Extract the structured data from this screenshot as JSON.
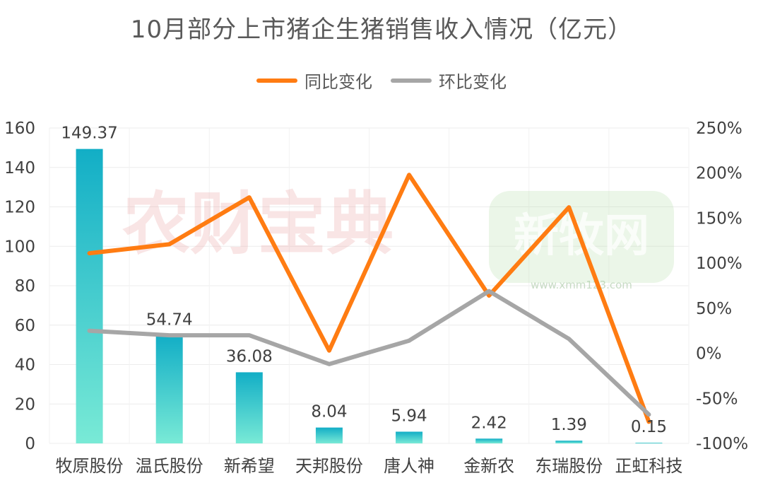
{
  "title": "10月部分上市猪企生猪销售收入情况（亿元）",
  "legend": {
    "yoy_label": "同比变化",
    "mom_label": "环比变化"
  },
  "watermarks": {
    "left": "农财宝典",
    "right": "新牧网",
    "right_sub": "www.xmm123.com"
  },
  "colors": {
    "bar_top": "#12aec6",
    "bar_bottom": "#79ead6",
    "yoy_line": "#ff7c12",
    "mom_line": "#a6a6a6",
    "text": "#404040"
  },
  "chart_data": {
    "type": "bar",
    "title": "10月部分上市猪企生猪销售收入情况（亿元）",
    "categories": [
      "牧原股份",
      "温氏股份",
      "新希望",
      "天邦股份",
      "唐人神",
      "金新农",
      "东瑞股份",
      "正虹科技"
    ],
    "values": [
      149.37,
      54.74,
      36.08,
      8.04,
      5.94,
      2.42,
      1.39,
      0.15
    ],
    "value_labels": [
      "149.37",
      "54.74",
      "36.08",
      "8.04",
      "5.94",
      "2.42",
      "1.39",
      "0.15"
    ],
    "ylim": [
      0,
      160
    ],
    "yticks": [
      "0",
      "20",
      "40",
      "60",
      "80",
      "100",
      "120",
      "140",
      "160"
    ],
    "y2lim": [
      -100,
      250
    ],
    "y2ticks": [
      "-100%",
      "-50%",
      "0%",
      "50%",
      "100%",
      "150%",
      "200%",
      "250%"
    ],
    "series": [
      {
        "name": "同比变化",
        "type": "line",
        "axis": "right",
        "values": [
          111,
          121,
          173,
          3,
          198,
          64,
          162,
          -76
        ]
      },
      {
        "name": "环比变化",
        "type": "line",
        "axis": "right",
        "values": [
          25,
          20,
          20,
          -12,
          14,
          69,
          16,
          -68
        ]
      }
    ],
    "grid": true,
    "legend_position": "top"
  }
}
